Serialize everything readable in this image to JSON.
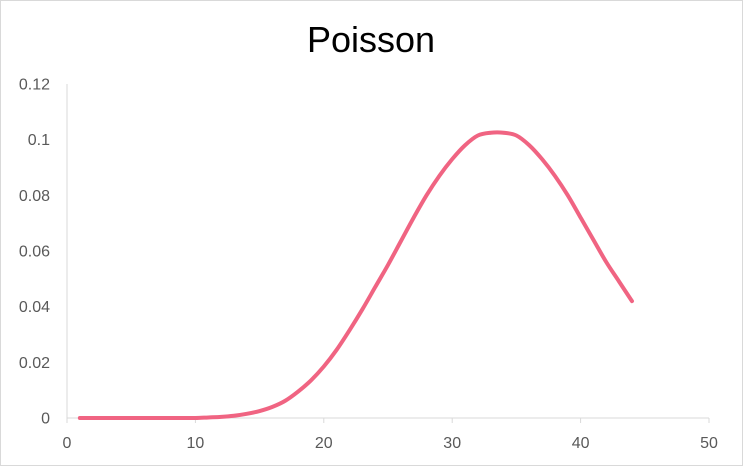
{
  "chart_data": {
    "type": "line",
    "title": "Poisson",
    "xlabel": "",
    "ylabel": "",
    "xlim": [
      0,
      50
    ],
    "ylim": [
      0,
      0.12
    ],
    "x_ticks": [
      "0",
      "10",
      "20",
      "30",
      "40",
      "50"
    ],
    "y_ticks": [
      "0",
      "0.02",
      "0.04",
      "0.06",
      "0.08",
      "0.1",
      "0.12"
    ],
    "grid": false,
    "legend": "none",
    "series": [
      {
        "color": "#f06482",
        "x": [
          1,
          2,
          3,
          4,
          5,
          6,
          7,
          8,
          9,
          10,
          11,
          12,
          13,
          14,
          15,
          16,
          17,
          18,
          19,
          20,
          21,
          22,
          23,
          24,
          25,
          26,
          27,
          28,
          29,
          30,
          31,
          32,
          33,
          34,
          35,
          36,
          37,
          38,
          39,
          40,
          41,
          42,
          43,
          44
        ],
        "y": [
          0,
          0,
          0,
          0,
          0,
          0,
          0,
          0,
          0,
          0,
          0.0002,
          0.0004,
          0.0008,
          0.0015,
          0.0025,
          0.004,
          0.0062,
          0.0095,
          0.0135,
          0.0185,
          0.0245,
          0.0315,
          0.039,
          0.047,
          0.055,
          0.0635,
          0.072,
          0.08,
          0.087,
          0.093,
          0.098,
          0.1015,
          0.1025,
          0.1025,
          0.1015,
          0.098,
          0.093,
          0.087,
          0.08,
          0.072,
          0.064,
          0.056,
          0.049,
          0.042
        ]
      }
    ]
  }
}
